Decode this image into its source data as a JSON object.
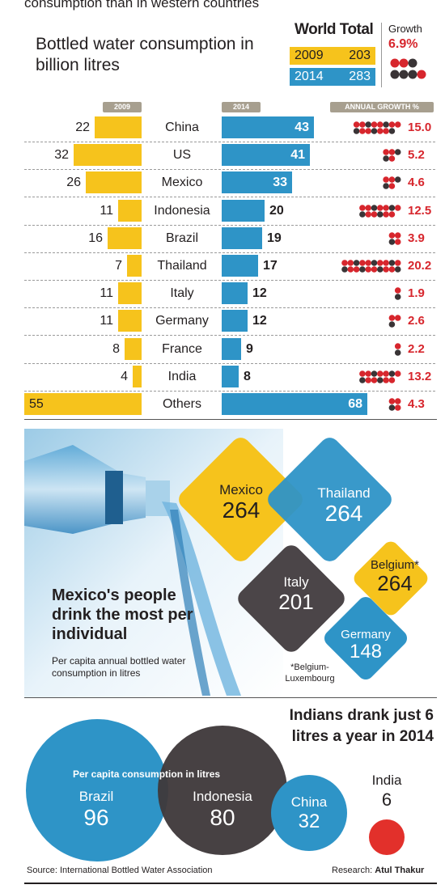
{
  "top_fragment": "consumption than in western countries",
  "title": "Bottled water consumption in billion litres",
  "world_total": {
    "title": "World Total",
    "rows": [
      {
        "year": "2009",
        "value": "203"
      },
      {
        "year": "2014",
        "value": "283"
      }
    ],
    "growth_label": "Growth",
    "growth_value": "6.9%"
  },
  "headers": {
    "y2009": "2009",
    "y2014": "2014",
    "growth": "ANNUAL GROWTH %"
  },
  "chart_data": {
    "type": "bar",
    "title": "Bottled water consumption in billion litres",
    "categories": [
      "China",
      "US",
      "Mexico",
      "Indonesia",
      "Brazil",
      "Thailand",
      "Italy",
      "Germany",
      "France",
      "India",
      "Others"
    ],
    "series": [
      {
        "name": "2009",
        "values": [
          22,
          32,
          26,
          11,
          16,
          7,
          11,
          11,
          8,
          4,
          55
        ]
      },
      {
        "name": "2014",
        "values": [
          43,
          41,
          33,
          20,
          19,
          17,
          12,
          12,
          9,
          8,
          68
        ]
      },
      {
        "name": "ANNUAL GROWTH %",
        "values": [
          15.0,
          5.2,
          4.6,
          12.5,
          3.9,
          20.2,
          1.9,
          2.6,
          2.2,
          13.2,
          4.3
        ]
      }
    ],
    "growth_labels": [
      "15.0",
      "5.2",
      "4.6",
      "12.5",
      "3.9",
      "20.2",
      "1.9",
      "2.6",
      "2.2",
      "13.2",
      "4.3"
    ],
    "colors": {
      "y2009": "#f6c31c",
      "y2014": "#2e94c7",
      "growth": "#d7262d",
      "dot_dark": "#3a3436"
    }
  },
  "per_capita": {
    "title": "Mexico's people drink the most per individual",
    "subtitle": "Per capita annual bottled water consumption in litres",
    "countries": [
      {
        "name": "Mexico",
        "value": "264",
        "color": "#f6c31c"
      },
      {
        "name": "Thailand",
        "value": "264",
        "color": "#2e94c7"
      },
      {
        "name": "Belgium*",
        "value": "264",
        "color": "#f6c31c"
      },
      {
        "name": "Italy",
        "value": "201",
        "color": "#4b4548"
      },
      {
        "name": "Germany",
        "value": "148",
        "color": "#2e94c7"
      }
    ],
    "footnote": "*Belgium-Luxembourg"
  },
  "india_section": {
    "title": "Indians drank just 6 litres a year in 2014",
    "circle_caption": "Per capita consumption in litres",
    "countries": [
      {
        "name": "Brazil",
        "value": "96",
        "color": "#2e94c7"
      },
      {
        "name": "Indonesia",
        "value": "80",
        "color": "#3f393b"
      },
      {
        "name": "China",
        "value": "32",
        "color": "#2e94c7"
      },
      {
        "name": "India",
        "value": "6",
        "color": "#e2302b"
      }
    ]
  },
  "source": "Source: International Bottled Water Association",
  "research_label": "Research:",
  "research_name": "Atul Thakur"
}
